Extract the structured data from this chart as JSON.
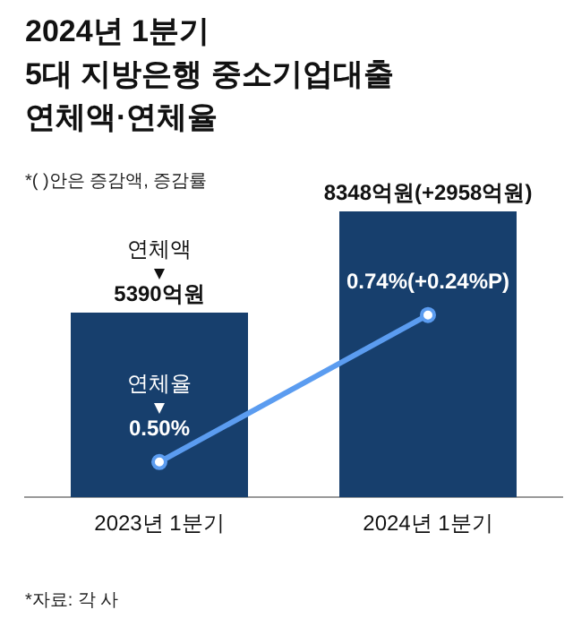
{
  "chart_data": {
    "type": "bar",
    "title": "2024년 1분기\n5대 지방은행 중소기업대출\n연체액·연체율",
    "annotations": [
      "*( )안은 증감액, 증감률",
      "*자료: 각 사"
    ],
    "categories": [
      "2023년 1분기",
      "2024년 1분기"
    ],
    "series": [
      {
        "name": "연체액",
        "color": "#173f6d",
        "values": [
          5390,
          8348
        ],
        "value_labels": [
          "5390억원",
          "8348억원(+2958억원)"
        ]
      },
      {
        "name": "연체율",
        "type": "line",
        "axis": "y2",
        "color": "#5b9cf0",
        "values": [
          0.5,
          0.74
        ],
        "value_labels": [
          "0.50%",
          "0.74%(+0.24%P)"
        ]
      }
    ],
    "tick_labels": "x",
    "grid": false,
    "legend": false,
    "marker": "circle",
    "line_style": "solid"
  }
}
